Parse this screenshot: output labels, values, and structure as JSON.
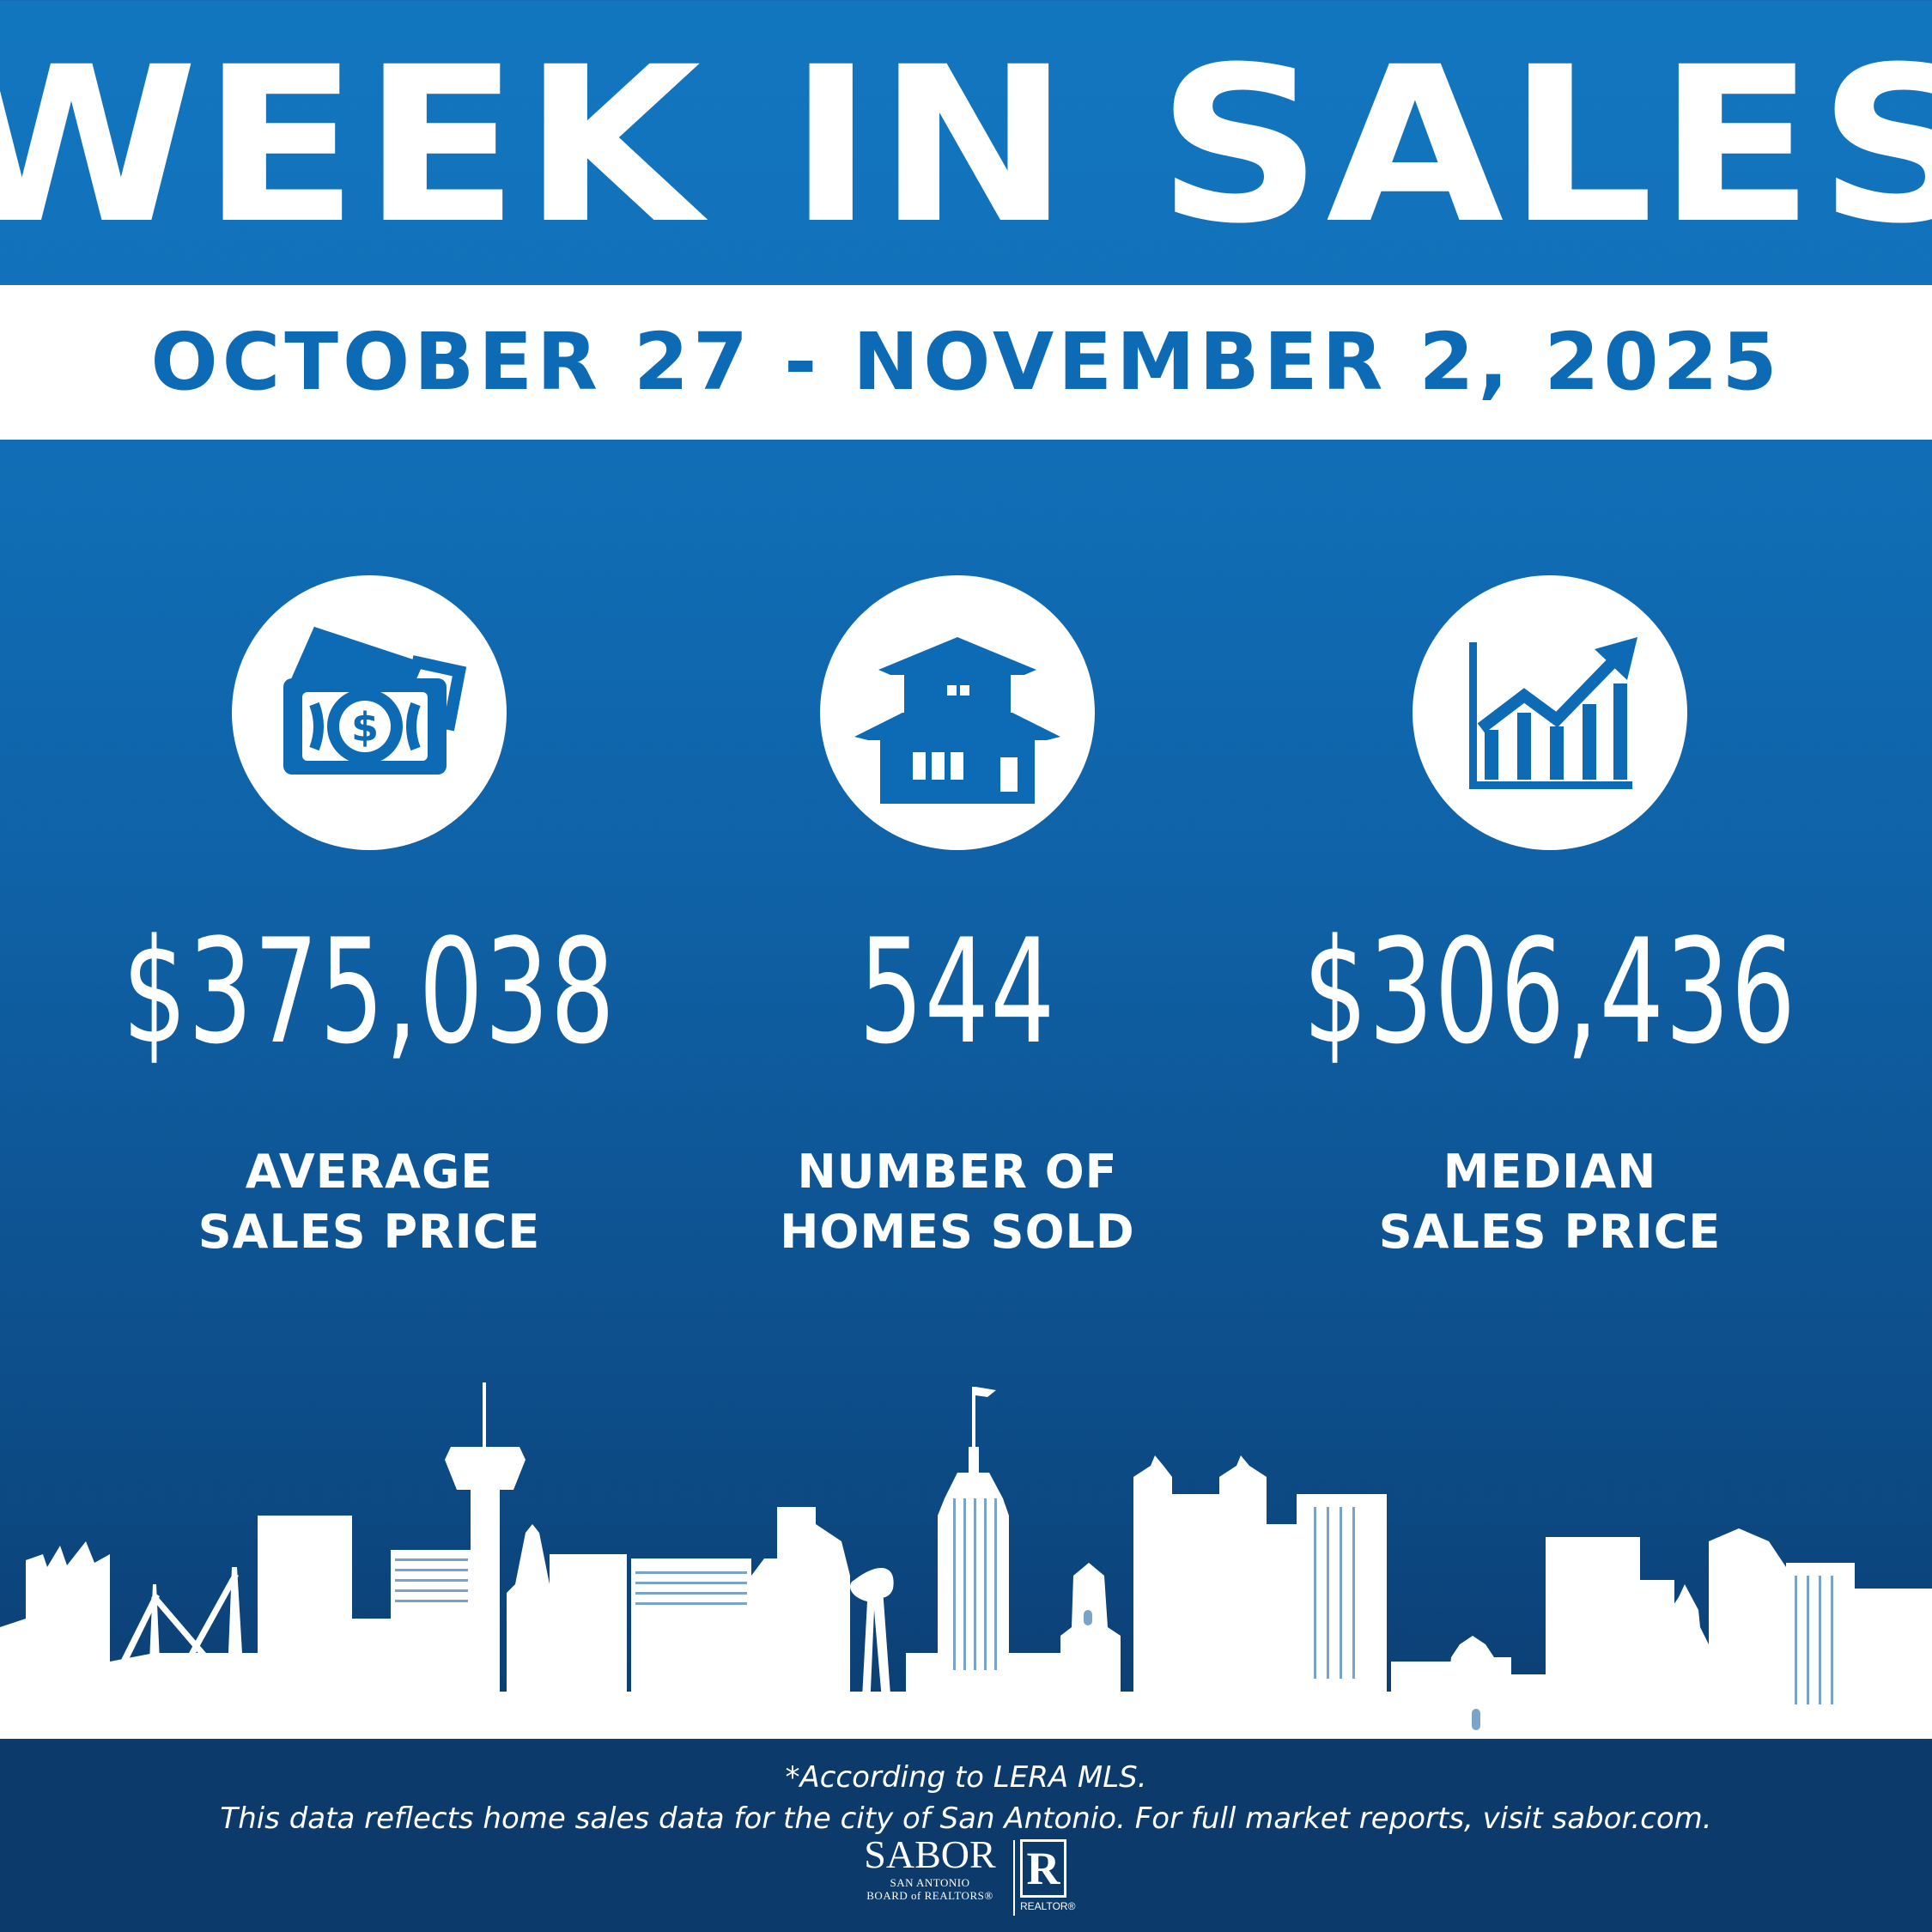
{
  "header": {
    "title": "WEEK IN SALES",
    "date_range": "OCTOBER 27 - NOVEMBER 2, 2025"
  },
  "stats": [
    {
      "icon": "money-bill-icon",
      "value": "$375,038",
      "label_line1": "AVERAGE",
      "label_line2": "SALES PRICE"
    },
    {
      "icon": "house-icon",
      "value": "544",
      "label_line1": "NUMBER OF",
      "label_line2": "HOMES SOLD"
    },
    {
      "icon": "growth-chart-icon",
      "value": "$306,436",
      "label_line1": "MEDIAN",
      "label_line2": "SALES PRICE"
    }
  ],
  "footer": {
    "source_note": "*According to LERA MLS.",
    "disclaimer": "This data reflects home sales data for the city of San Antonio. For full market reports, visit sabor.com.",
    "sabor_logo_text": "SABOR",
    "sabor_logo_sub1": "SAN ANTONIO",
    "sabor_logo_sub2": "BOARD of REALTORS®",
    "realtor_logo_letter": "R",
    "realtor_logo_text": "REALTOR®"
  },
  "colors": {
    "brand_blue": "#0d6ab4",
    "dark_navy": "#0b3a6b",
    "white": "#ffffff"
  }
}
